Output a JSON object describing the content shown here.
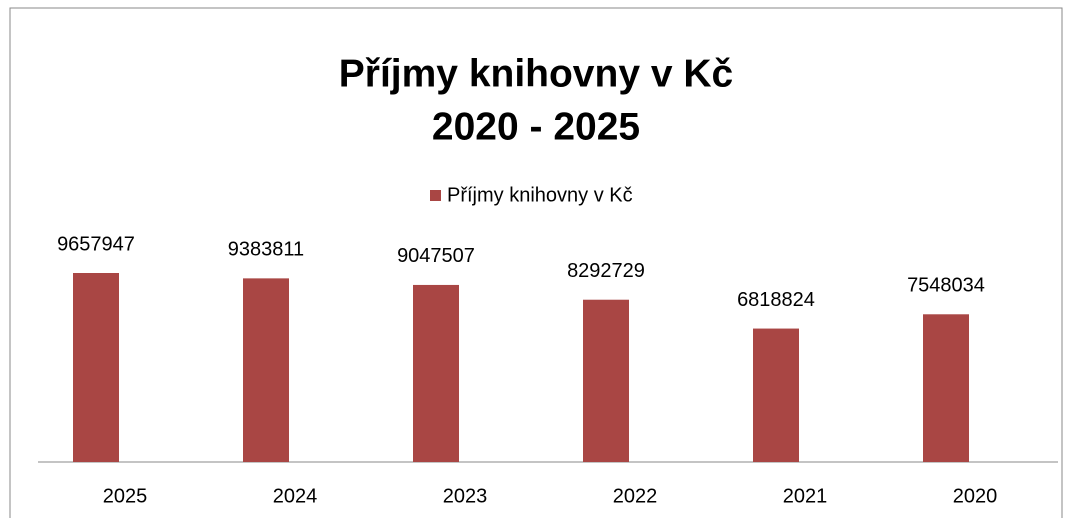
{
  "chart_data": {
    "type": "bar",
    "title": [
      "Příjmy knihovny v Kč",
      "2020 - 2025"
    ],
    "categories": [
      "2025",
      "2024",
      "2023",
      "2022",
      "2021",
      "2020"
    ],
    "series": [
      {
        "name": "Příjmy knihovny v Kč",
        "color": "#a94644",
        "values": [
          9657947,
          9383811,
          9047507,
          8292729,
          6818824,
          7548034
        ]
      }
    ]
  }
}
